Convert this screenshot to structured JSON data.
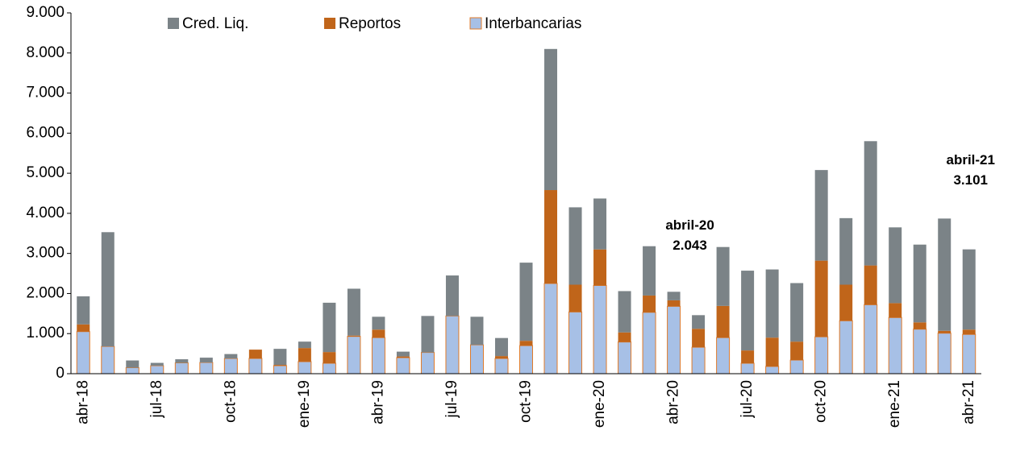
{
  "chart_data": {
    "type": "stacked_bar",
    "categories": [
      "abr-18",
      null,
      null,
      "jul-18",
      null,
      null,
      "oct-18",
      null,
      null,
      "ene-19",
      null,
      null,
      "abr-19",
      null,
      null,
      "jul-19",
      null,
      null,
      "oct-19",
      null,
      null,
      "ene-20",
      null,
      null,
      "abr-20",
      null,
      null,
      "jul-20",
      null,
      null,
      "oct-20",
      null,
      null,
      "ene-21",
      null,
      null,
      "abr-21"
    ],
    "series": [
      {
        "name": "Cred. Liq.",
        "color": "#7b8387",
        "values": [
          700,
          2850,
          180,
          70,
          90,
          120,
          110,
          0,
          400,
          160,
          1230,
          1170,
          320,
          120,
          910,
          1010,
          700,
          450,
          1950,
          3520,
          1930,
          1270,
          1030,
          1230,
          213,
          340,
          1470,
          1990,
          1700,
          1460,
          2260,
          1660,
          3100,
          1890,
          1940,
          2800,
          2001
        ]
      },
      {
        "name": "Reportos",
        "color": "#c0651a",
        "values": [
          180,
          0,
          0,
          0,
          0,
          0,
          0,
          220,
          20,
          340,
          280,
          20,
          200,
          30,
          0,
          0,
          0,
          60,
          120,
          2330,
          680,
          900,
          240,
          420,
          150,
          460,
          790,
          320,
          720,
          460,
          1900,
          900,
          980,
          360,
          170,
          60,
          120
        ]
      },
      {
        "name": "Interbancarias",
        "color": "#a7c0e6",
        "values": [
          1050,
          680,
          150,
          200,
          270,
          280,
          380,
          380,
          200,
          300,
          260,
          930,
          900,
          400,
          530,
          1440,
          720,
          380,
          700,
          2250,
          1540,
          2200,
          790,
          1530,
          1680,
          660,
          900,
          260,
          180,
          340,
          920,
          1320,
          1720,
          1400,
          1110,
          1010,
          980
        ]
      }
    ],
    "annotations": [
      {
        "category": 24,
        "lines": [
          "abril-20",
          "2.043"
        ]
      },
      {
        "category": 36,
        "lines": [
          "abril-21",
          "3.101"
        ]
      }
    ],
    "ylim": [
      0,
      9000
    ],
    "yticks": [
      0,
      {
        "value": 1000,
        "label": "1.000"
      },
      {
        "value": 2000,
        "label": "2.000"
      },
      {
        "value": 3000,
        "label": "3.000"
      },
      {
        "value": 4000,
        "label": "4.000"
      },
      {
        "value": 5000,
        "label": "5.000"
      },
      {
        "value": 6000,
        "label": "6.000"
      },
      {
        "value": 7000,
        "label": "7.000"
      },
      {
        "value": 8000,
        "label": "8.000"
      },
      {
        "value": 9000,
        "label": "9.000"
      }
    ],
    "legend": "top"
  }
}
